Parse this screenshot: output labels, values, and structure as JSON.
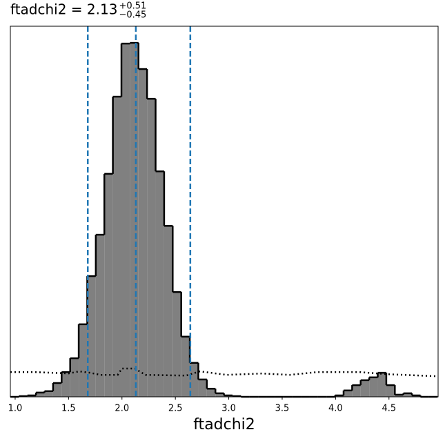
{
  "chart_data": {
    "type": "histogram",
    "title": "ftadchi2 = 2.13",
    "title_upper": "+0.51",
    "title_lower": "−0.45",
    "xlabel": "ftadchi2",
    "bins": [
      0.955,
      1.035,
      1.115,
      1.195,
      1.275,
      1.355,
      1.435,
      1.515,
      1.595,
      1.675,
      1.755,
      1.835,
      1.915,
      1.995,
      2.075,
      2.155,
      2.235,
      2.315,
      2.395,
      2.475,
      2.555,
      2.635,
      2.715,
      2.795,
      2.875,
      2.955,
      3.035,
      3.115,
      3.195,
      3.275,
      3.355,
      3.435,
      3.515,
      3.595,
      3.675,
      3.755,
      3.835,
      3.915,
      3.995,
      4.075,
      4.155,
      4.235,
      4.315,
      4.395,
      4.475,
      4.555,
      4.635,
      4.715,
      4.795,
      4.875,
      4.955
    ],
    "values": [
      0,
      0.002,
      0.004,
      0.012,
      0.016,
      0.039,
      0.07,
      0.109,
      0.205,
      0.341,
      0.458,
      0.63,
      0.848,
      0.998,
      1.0,
      0.926,
      0.842,
      0.637,
      0.483,
      0.296,
      0.17,
      0.096,
      0.049,
      0.023,
      0.01,
      0.004,
      0.002,
      0,
      0,
      0,
      0,
      0,
      0,
      0,
      0,
      0,
      0,
      0,
      0.004,
      0.018,
      0.033,
      0.047,
      0.055,
      0.068,
      0.033,
      0.006,
      0.01,
      0.004,
      0,
      0
    ],
    "color": "#808080",
    "edgecolor": "#000000",
    "quantiles": [
      1.68,
      2.13,
      2.64
    ],
    "quantile_color": "#1f77b4",
    "overlay": {
      "color": "#000000",
      "x": [
        0.955,
        1.18,
        1.5,
        1.6,
        1.7,
        1.8,
        1.96,
        2.0,
        2.12,
        2.22,
        2.6,
        2.73,
        2.98,
        3.31,
        3.57,
        3.83,
        4.22,
        4.48,
        4.955
      ],
      "values": [
        0.07,
        0.07,
        0.066,
        0.072,
        0.068,
        0.062,
        0.062,
        0.08,
        0.08,
        0.062,
        0.06,
        0.072,
        0.062,
        0.066,
        0.062,
        0.07,
        0.07,
        0.064,
        0.058
      ]
    },
    "xlim": [
      0.955,
      4.96
    ],
    "ylim": [
      0,
      1.047
    ],
    "xticks": [
      {
        "value": 1,
        "label": "1.0"
      },
      {
        "value": 1.5,
        "label": "1.5"
      },
      {
        "value": 2,
        "label": "2.0"
      },
      {
        "value": 2.5,
        "label": "2.5"
      },
      {
        "value": 3,
        "label": "3.0"
      },
      {
        "value": 3.5,
        "label": "3.5"
      },
      {
        "value": 4,
        "label": "4.0"
      },
      {
        "value": 4.5,
        "label": "4.5"
      }
    ]
  }
}
